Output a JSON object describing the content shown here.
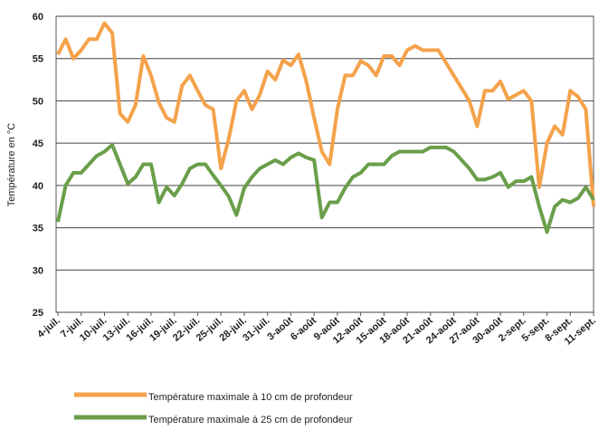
{
  "chart_data": {
    "type": "line",
    "y_label": "Température en °C",
    "categories": [
      "4-juil.",
      null,
      null,
      "7-juil.",
      null,
      null,
      "10-juil.",
      null,
      null,
      "13-juil.",
      null,
      null,
      "16-juil.",
      null,
      null,
      "19-juil.",
      null,
      null,
      "22-juil.",
      null,
      null,
      "25-juil.",
      null,
      null,
      "28-juil.",
      null,
      null,
      "31-juil.",
      null,
      null,
      "3-août",
      null,
      null,
      "6-août",
      null,
      null,
      "9-août",
      null,
      null,
      "12-août",
      null,
      null,
      "15-août",
      null,
      null,
      "18-août",
      null,
      null,
      "21-août",
      null,
      null,
      "24-août",
      null,
      null,
      "27-août",
      null,
      null,
      "30-août",
      null,
      null,
      "2-sept.",
      null,
      null,
      "5-sept.",
      null,
      null,
      "8-sept.",
      null,
      null,
      "11-sept."
    ],
    "series": [
      {
        "name": "Température maximale à 10 cm de profondeur",
        "color": "#f4a24b",
        "values": [
          55.5,
          57.3,
          55,
          56,
          57.3,
          57.3,
          59.2,
          58,
          48.5,
          47.5,
          49.5,
          55.3,
          53,
          49.8,
          48,
          47.5,
          51.8,
          53,
          51.2,
          49.5,
          49,
          42,
          45.5,
          50,
          51.2,
          49,
          50.7,
          53.5,
          52.5,
          54.8,
          54.2,
          55.5,
          52.3,
          48,
          44,
          42.5,
          49,
          53,
          53,
          54.7,
          54.2,
          53,
          55.3,
          55.3,
          54.2,
          56,
          56.5,
          56,
          56,
          56,
          54.5,
          53,
          51.5,
          50,
          47,
          51.2,
          51.2,
          52.3,
          50.2,
          50.7,
          51.2,
          50,
          39.8,
          45,
          47,
          46,
          51.2,
          50.5,
          49,
          37.5
        ]
      },
      {
        "name": "Température maximale à 25 cm de profondeur",
        "color": "#6a9e4a",
        "values": [
          35.7,
          40,
          41.5,
          41.5,
          42.5,
          43.5,
          44,
          44.8,
          42.5,
          40.2,
          41,
          42.5,
          42.5,
          38,
          39.8,
          38.8,
          40.2,
          42,
          42.5,
          42.5,
          41.2,
          40,
          38.7,
          36.5,
          39.7,
          41,
          42,
          42.5,
          43,
          42.5,
          43.3,
          43.8,
          43.3,
          43,
          36.2,
          38,
          38,
          39.7,
          41,
          41.5,
          42.5,
          42.5,
          42.5,
          43.5,
          44,
          44,
          44,
          44,
          44.5,
          44.5,
          44.5,
          44,
          43,
          42,
          40.7,
          40.7,
          41,
          41.5,
          39.8,
          40.5,
          40.5,
          41,
          37.5,
          34.5,
          37.5,
          38.3,
          38,
          38.5,
          39.8,
          38.3
        ]
      }
    ],
    "ylim": [
      25,
      60
    ],
    "yticks": [
      25,
      30,
      35,
      40,
      45,
      50,
      55,
      60
    ],
    "grid": true
  }
}
